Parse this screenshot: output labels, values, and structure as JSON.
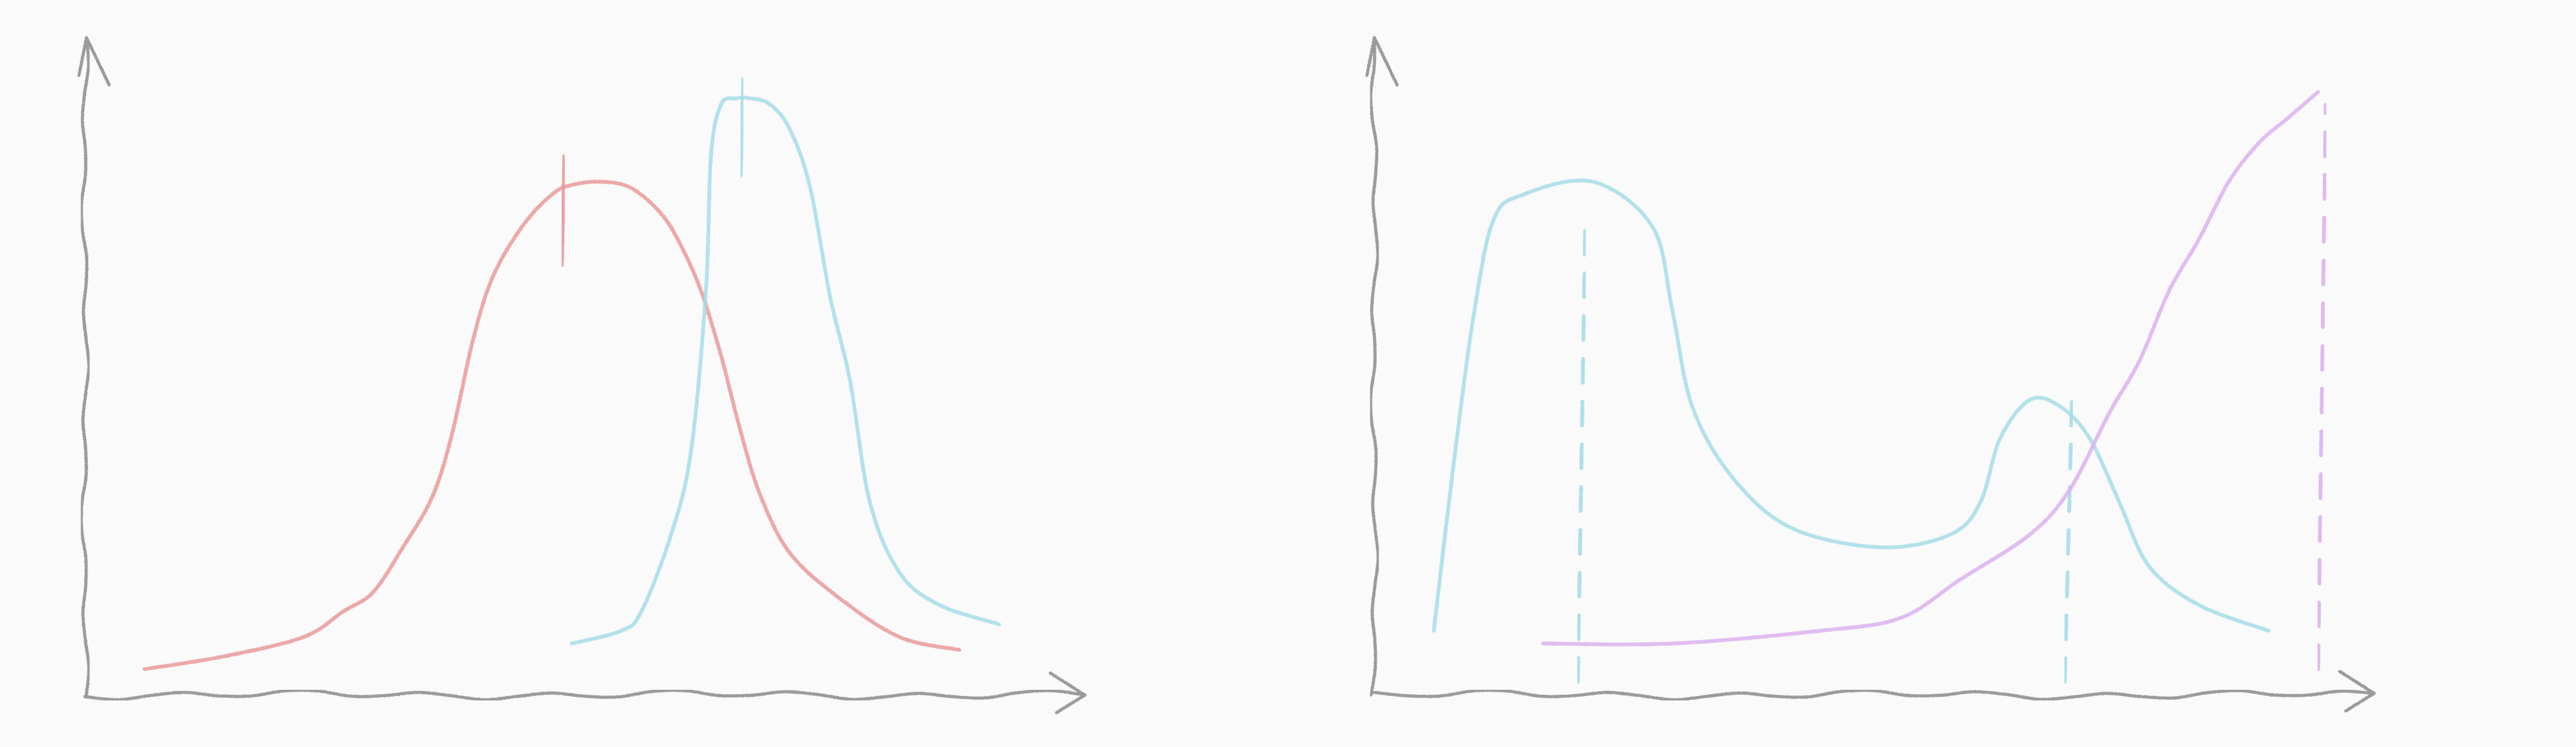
{
  "chart_data": [
    {
      "type": "line",
      "style": "hand-drawn sketch",
      "xlim": [
        0,
        10
      ],
      "ylim": [
        0,
        10
      ],
      "grid": false,
      "legend": "none",
      "axis_color": "#9a9a9a",
      "series": [
        {
          "color": "#e99a9a",
          "x": [
            0.6,
            1.4,
            2.2,
            2.6,
            2.9,
            3.2,
            3.5,
            3.7,
            3.9,
            4.1,
            4.4,
            4.7,
            4.9,
            5.2,
            5.5,
            5.8,
            6.0,
            6.2,
            6.4,
            6.6,
            6.8,
            7.1,
            7.6,
            8.2,
            8.8
          ],
          "y": [
            0.4,
            0.6,
            0.9,
            1.3,
            1.6,
            2.3,
            3.1,
            4.1,
            5.5,
            6.5,
            7.3,
            7.8,
            7.95,
            8.0,
            7.9,
            7.5,
            7.0,
            6.3,
            5.3,
            4.1,
            3.1,
            2.2,
            1.5,
            0.9,
            0.7
          ],
          "peak_marker": {
            "x": 4.8,
            "y_range": [
              6.7,
              8.4
            ],
            "style": "solid"
          }
        },
        {
          "color": "#a6dde8",
          "x": [
            4.9,
            5.4,
            5.6,
            5.9,
            6.1,
            6.25,
            6.3,
            6.4,
            6.55,
            6.7,
            6.9,
            7.1,
            7.3,
            7.5,
            7.7,
            7.9,
            8.2,
            8.6,
            9.2
          ],
          "y": [
            0.8,
            1.0,
            1.3,
            2.5,
            3.8,
            6.3,
            8.4,
            9.2,
            9.3,
            9.3,
            9.2,
            8.8,
            7.9,
            6.2,
            4.9,
            3.0,
            1.9,
            1.4,
            1.1
          ],
          "peak_marker": {
            "x": 6.6,
            "y_range": [
              8.1,
              9.6
            ],
            "style": "solid"
          }
        }
      ]
    },
    {
      "type": "line",
      "style": "hand-drawn sketch",
      "xlim": [
        0,
        10
      ],
      "ylim": [
        0,
        10
      ],
      "grid": false,
      "legend": "none",
      "axis_color": "#9a9a9a",
      "series": [
        {
          "color": "#a6dde8",
          "x": [
            0.6,
            0.8,
            1.0,
            1.2,
            1.5,
            2.2,
            2.8,
            3.0,
            3.2,
            3.6,
            4.2,
            5.1,
            5.8,
            6.1,
            6.3,
            6.6,
            6.9,
            7.2,
            7.5,
            7.8,
            8.3,
            9.0
          ],
          "y": [
            1.0,
            3.6,
            5.9,
            7.4,
            7.8,
            8.0,
            7.3,
            6.0,
            4.5,
            3.4,
            2.6,
            2.3,
            2.5,
            3.0,
            4.0,
            4.6,
            4.5,
            4.0,
            3.0,
            2.0,
            1.4,
            1.0
          ],
          "peak_markers": [
            {
              "x": 2.05,
              "y_range": [
                0.2,
                7.5
              ],
              "style": "dashed"
            },
            {
              "x": 6.95,
              "y_range": [
                0.2,
                4.8
              ],
              "style": "dashed"
            }
          ]
        },
        {
          "color": "#dcb2ef",
          "x": [
            1.7,
            3.0,
            4.5,
            5.3,
            5.9,
            6.6,
            7.0,
            7.4,
            7.7,
            8.0,
            8.3,
            8.6,
            8.9,
            9.2,
            9.5
          ],
          "y": [
            0.8,
            0.8,
            1.0,
            1.2,
            1.8,
            2.5,
            3.2,
            4.4,
            5.2,
            6.3,
            7.1,
            8.0,
            8.6,
            9.0,
            9.4
          ],
          "peak_marker": {
            "x": 9.5,
            "y_range": [
              0.4,
              9.2
            ],
            "style": "dashed"
          }
        }
      ]
    }
  ]
}
